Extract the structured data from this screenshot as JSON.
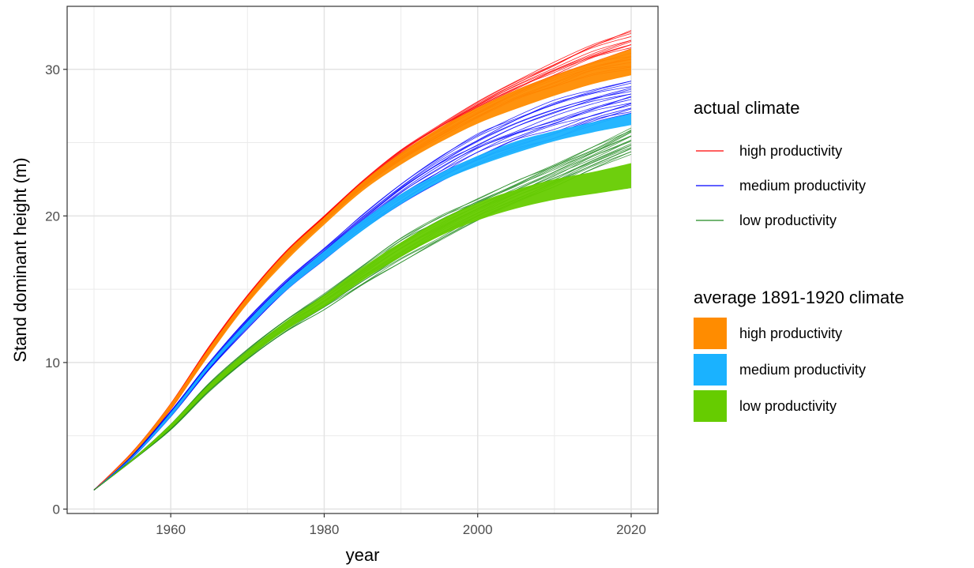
{
  "chart_data": {
    "type": "line",
    "xlabel": "year",
    "ylabel": "Stand dominant height (m)",
    "xlim": [
      1946.5,
      2023.5
    ],
    "ylim": [
      -0.3,
      34.3
    ],
    "x_ticks": [
      1960,
      1980,
      2000,
      2020
    ],
    "y_ticks": [
      0,
      10,
      20,
      30
    ],
    "grid": true,
    "legend_placement": "right",
    "x_years": [
      1950,
      1955,
      1960,
      1965,
      1970,
      1975,
      1980,
      1985,
      1990,
      1995,
      2000,
      2005,
      2010,
      2015,
      2020
    ],
    "series": [
      {
        "group": "actual climate",
        "name": "high productivity",
        "style": "lines",
        "color": "#ff0000",
        "line_count": 20,
        "lower": [
          1.3,
          3.7,
          6.8,
          10.6,
          14.1,
          17.1,
          19.6,
          21.9,
          23.8,
          25.3,
          26.7,
          27.9,
          28.8,
          29.6,
          30.0
        ],
        "upper": [
          1.3,
          3.9,
          7.2,
          11.1,
          14.6,
          17.6,
          20.0,
          22.4,
          24.5,
          26.2,
          27.8,
          29.2,
          30.5,
          31.7,
          32.7
        ]
      },
      {
        "group": "actual climate",
        "name": "medium productivity",
        "style": "lines",
        "color": "#0000ff",
        "line_count": 20,
        "lower": [
          1.3,
          3.5,
          6.3,
          9.5,
          12.3,
          14.9,
          17.0,
          19.0,
          20.8,
          22.3,
          23.5,
          24.5,
          25.3,
          26.2,
          27.0
        ],
        "upper": [
          1.3,
          3.7,
          6.7,
          10.0,
          13.0,
          15.6,
          17.8,
          20.1,
          22.2,
          24.0,
          25.6,
          26.9,
          27.9,
          28.6,
          29.2
        ]
      },
      {
        "group": "actual climate",
        "name": "low productivity",
        "style": "lines",
        "color": "#228b22",
        "line_count": 20,
        "lower": [
          1.3,
          3.3,
          5.4,
          8.0,
          10.2,
          12.1,
          13.6,
          15.3,
          16.8,
          18.3,
          19.7,
          20.9,
          22.0,
          23.2,
          24.2
        ],
        "upper": [
          1.3,
          3.4,
          5.8,
          8.6,
          10.9,
          12.9,
          14.7,
          16.6,
          18.5,
          20.0,
          21.2,
          22.4,
          23.5,
          24.7,
          26.0
        ]
      },
      {
        "group": "average 1891-1920 climate",
        "name": "high productivity",
        "style": "band",
        "color": "#ff8c00",
        "lower": [
          1.3,
          3.7,
          6.8,
          10.5,
          14.0,
          16.9,
          19.4,
          21.7,
          23.5,
          25.0,
          26.3,
          27.3,
          28.2,
          29.0,
          29.6
        ],
        "upper": [
          1.3,
          3.9,
          7.2,
          11.0,
          14.5,
          17.5,
          19.9,
          22.3,
          24.3,
          26.0,
          27.4,
          28.6,
          29.6,
          30.5,
          31.4
        ]
      },
      {
        "group": "average 1891-1920 climate",
        "name": "medium productivity",
        "style": "band",
        "color": "#1ab2ff",
        "lower": [
          1.3,
          3.5,
          6.3,
          9.6,
          12.4,
          14.9,
          17.0,
          19.0,
          20.8,
          22.3,
          23.4,
          24.3,
          25.1,
          25.7,
          26.2
        ],
        "upper": [
          1.3,
          3.6,
          6.6,
          9.9,
          12.8,
          15.4,
          17.6,
          19.7,
          21.5,
          22.9,
          24.1,
          25.1,
          25.8,
          26.4,
          27.0
        ]
      },
      {
        "group": "average 1891-1920 climate",
        "name": "low productivity",
        "style": "band",
        "color": "#66cc00",
        "lower": [
          1.3,
          3.3,
          5.5,
          8.1,
          10.3,
          12.2,
          13.8,
          15.6,
          17.2,
          18.6,
          19.7,
          20.5,
          21.1,
          21.5,
          21.9
        ],
        "upper": [
          1.3,
          3.4,
          5.8,
          8.5,
          10.8,
          12.8,
          14.6,
          16.5,
          18.2,
          19.7,
          20.9,
          21.8,
          22.5,
          23.0,
          23.6
        ]
      }
    ],
    "legend": [
      {
        "title": "actual climate",
        "kind": "line",
        "items": [
          {
            "label": "high productivity",
            "color": "#ff0000"
          },
          {
            "label": "medium productivity",
            "color": "#0000ff"
          },
          {
            "label": "low productivity",
            "color": "#228b22"
          }
        ]
      },
      {
        "title": "average 1891-1920 climate",
        "kind": "fill",
        "items": [
          {
            "label": "high productivity",
            "color": "#ff8c00"
          },
          {
            "label": "medium productivity",
            "color": "#1ab2ff"
          },
          {
            "label": "low productivity",
            "color": "#66cc00"
          }
        ]
      }
    ]
  }
}
